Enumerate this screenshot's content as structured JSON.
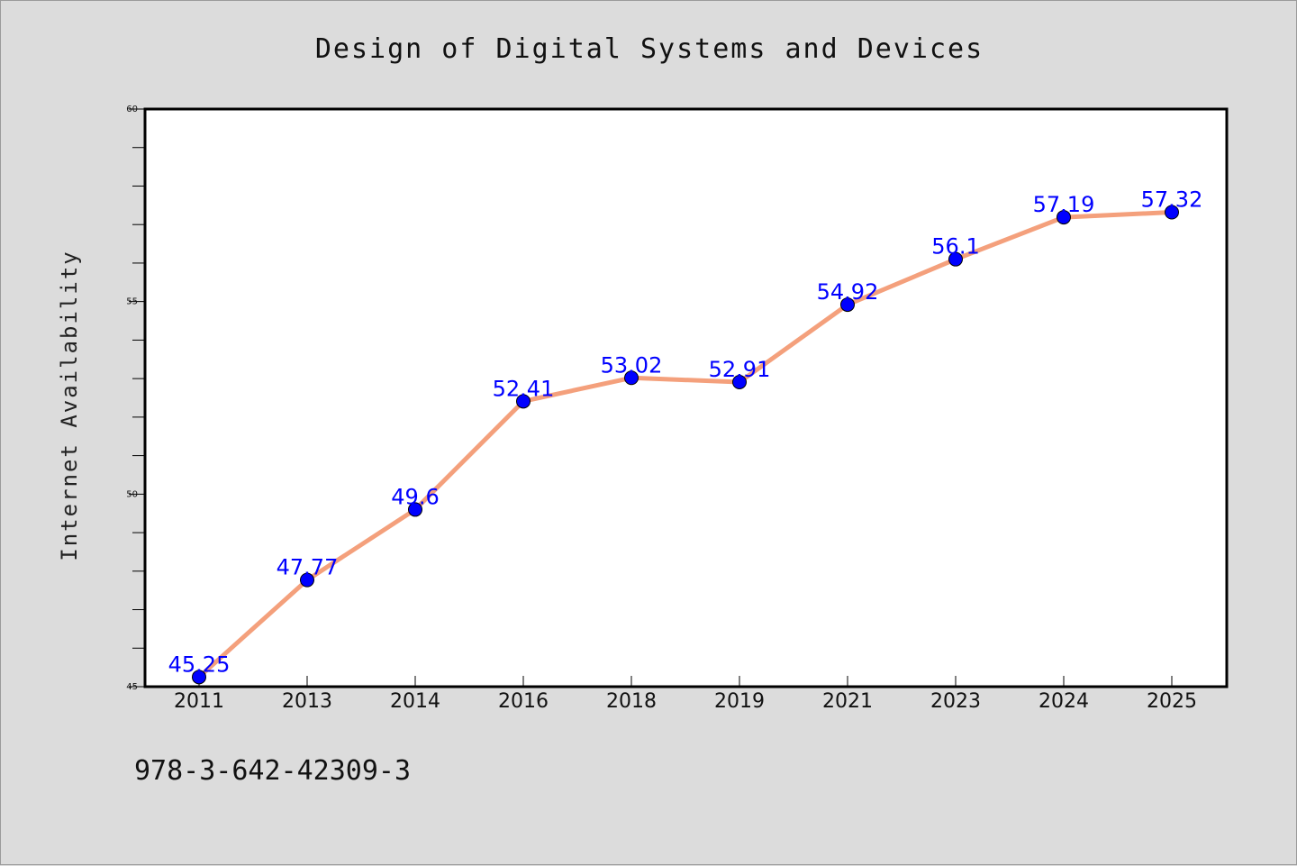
{
  "chart_data": {
    "type": "line",
    "title": "Design of Digital Systems and Devices",
    "xlabel": "",
    "ylabel": "Internet Availability",
    "categories": [
      "2011",
      "2013",
      "2014",
      "2016",
      "2018",
      "2019",
      "2021",
      "2023",
      "2024",
      "2025"
    ],
    "series": [
      {
        "values": [
          45.25,
          47.77,
          49.6,
          52.41,
          53.02,
          52.91,
          54.92,
          56.1,
          57.19,
          57.32
        ],
        "data_labels": [
          "45.25",
          "47.77",
          "49.6",
          "52.41",
          "53.02",
          "52.91",
          "54.92",
          "56.1",
          "57.19",
          "57.32"
        ],
        "line_color": "#f4a07c",
        "marker_color": "#0000ff"
      }
    ],
    "ylim": [
      45,
      60
    ],
    "yticks": [
      "45",
      "50",
      "55",
      "60"
    ],
    "grid": false,
    "legend": "none"
  },
  "footer": {
    "isbn": "978-3-642-42309-3"
  },
  "colors": {
    "background": "#dcdcdc",
    "plot_area": "#ffffff",
    "data_label": "#0000ff"
  }
}
